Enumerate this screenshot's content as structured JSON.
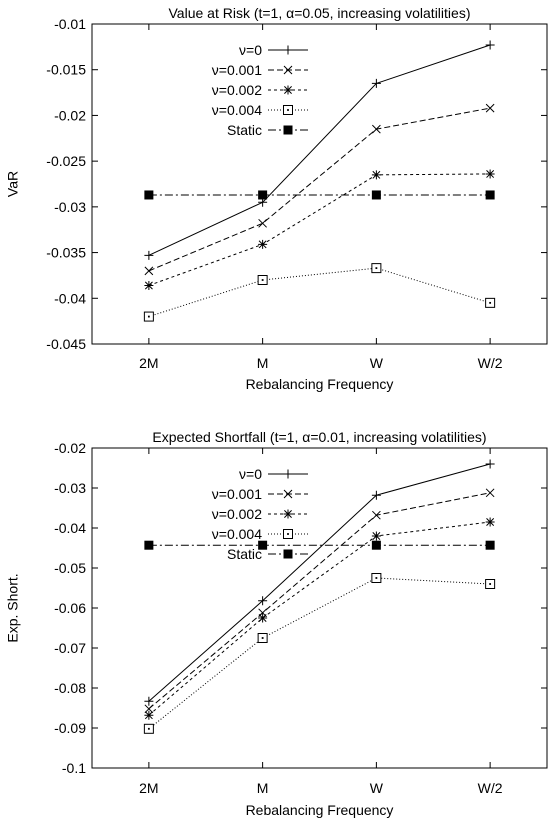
{
  "chart_data": [
    {
      "type": "line",
      "title": "Value at Risk (t=1, α=0.05, increasing volatilities)",
      "xlabel": "Rebalancing Frequency",
      "ylabel": "VaR",
      "categories": [
        "2M",
        "M",
        "W",
        "W/2"
      ],
      "ylim": [
        -0.045,
        -0.01
      ],
      "yticks": [
        -0.045,
        -0.04,
        -0.035,
        -0.03,
        -0.025,
        -0.02,
        -0.015,
        -0.01
      ],
      "ytick_labels": [
        "-0.045",
        "-0.04",
        "-0.035",
        "-0.03",
        "-0.025",
        "-0.02",
        "-0.015",
        "-0.01"
      ],
      "grid": false,
      "legend_position": "top-left",
      "series": [
        {
          "name": "ν=0",
          "values": [
            -0.0353,
            -0.0295,
            -0.0165,
            -0.0123
          ],
          "marker": "plus",
          "dash": "solid"
        },
        {
          "name": "ν=0.001",
          "values": [
            -0.037,
            -0.0318,
            -0.0215,
            -0.0192
          ],
          "marker": "cross",
          "dash": "dashed"
        },
        {
          "name": "ν=0.002",
          "values": [
            -0.0386,
            -0.0341,
            -0.0265,
            -0.0264
          ],
          "marker": "star",
          "dash": "short-dashed"
        },
        {
          "name": "ν=0.004",
          "values": [
            -0.042,
            -0.038,
            -0.0367,
            -0.0405
          ],
          "marker": "open-square",
          "dash": "dotted"
        },
        {
          "name": "Static",
          "values": [
            -0.0287,
            -0.0287,
            -0.0287,
            -0.0287
          ],
          "marker": "filled-square",
          "dash": "dash-dot"
        }
      ]
    },
    {
      "type": "line",
      "title": "Expected Shortfall (t=1, α=0.01, increasing volatilities)",
      "xlabel": "Rebalancing Frequency",
      "ylabel": "Exp. Short.",
      "categories": [
        "2M",
        "M",
        "W",
        "W/2"
      ],
      "ylim": [
        -0.1,
        -0.02
      ],
      "yticks": [
        -0.1,
        -0.09,
        -0.08,
        -0.07,
        -0.06,
        -0.05,
        -0.04,
        -0.03,
        -0.02
      ],
      "ytick_labels": [
        "-0.1",
        "-0.09",
        "-0.08",
        "-0.07",
        "-0.06",
        "-0.05",
        "-0.04",
        "-0.03",
        "-0.02"
      ],
      "grid": false,
      "legend_position": "top-left",
      "series": [
        {
          "name": "ν=0",
          "values": [
            -0.0833,
            -0.0582,
            -0.0318,
            -0.024
          ],
          "marker": "plus",
          "dash": "solid"
        },
        {
          "name": "ν=0.001",
          "values": [
            -0.0852,
            -0.0612,
            -0.0368,
            -0.0312
          ],
          "marker": "cross",
          "dash": "dashed"
        },
        {
          "name": "ν=0.002",
          "values": [
            -0.0868,
            -0.0625,
            -0.042,
            -0.0385
          ],
          "marker": "star",
          "dash": "short-dashed"
        },
        {
          "name": "ν=0.004",
          "values": [
            -0.0902,
            -0.0675,
            -0.0525,
            -0.054
          ],
          "marker": "open-square",
          "dash": "dotted"
        },
        {
          "name": "Static",
          "values": [
            -0.0443,
            -0.0443,
            -0.0443,
            -0.0443
          ],
          "marker": "filled-square",
          "dash": "dash-dot"
        }
      ]
    }
  ]
}
